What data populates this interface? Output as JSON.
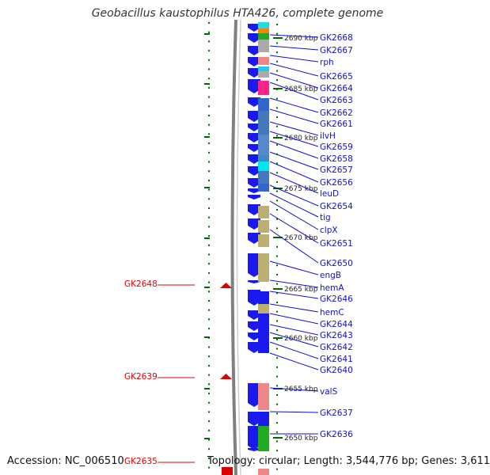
{
  "title": "Geobacillus kaustophilus HTA426, complete genome",
  "footer": {
    "accession": "Accession: NC_006510",
    "summary": "Topology: circular; Length: 3,544,776 bp; Genes: 3,611"
  },
  "colors": {
    "gene_blue": "#1a1aee",
    "label_blue": "#1010cc",
    "highlight_red": "#dd0000",
    "tick_green": "#006600",
    "backbone_gray": "#808080"
  },
  "kbp_marks": [
    "2690 kbp",
    "2685 kbp",
    "2680 kbp",
    "2675 kbp",
    "2670 kbp",
    "2665 kbp",
    "2660 kbp",
    "2655 kbp",
    "2650 kbp"
  ],
  "right_labels": [
    "GK2668",
    "GK2667",
    "rph",
    "GK2665",
    "GK2664",
    "GK2663",
    "GK2662",
    "GK2661",
    "ilvH",
    "GK2659",
    "GK2658",
    "GK2657",
    "GK2656",
    "leuD",
    "GK2654",
    "tig",
    "clpX",
    "GK2651",
    "GK2650",
    "engB",
    "hemA",
    "GK2646",
    "hemC",
    "GK2644",
    "GK2643",
    "GK2642",
    "GK2641",
    "GK2640",
    "valS",
    "GK2637",
    "GK2636"
  ],
  "left_highlights": [
    "GK2648",
    "GK2639",
    "GK2635"
  ]
}
